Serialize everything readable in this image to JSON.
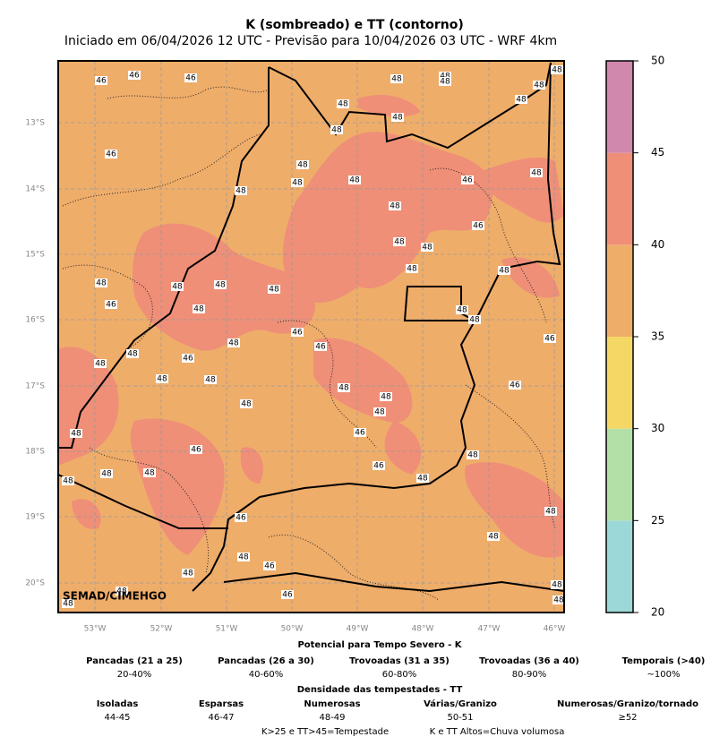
{
  "title": "K (sombreado) e TT (contorno)",
  "subtitle": "Iniciado em 06/04/2026 12 UTC - Previsão para 10/04/2026 03 UTC - WRF 4km",
  "map": {
    "lon_labels": [
      "53°W",
      "52°W",
      "51°W",
      "50°W",
      "49°W",
      "48°W",
      "47°W",
      "46°W"
    ],
    "lat_labels": [
      "13°S",
      "14°S",
      "15°S",
      "16°S",
      "17°S",
      "18°S",
      "19°S",
      "20°S"
    ],
    "watermark": "SEMAD/CIMEHGO",
    "contour_labels": [
      "46",
      "46",
      "46",
      "48",
      "48",
      "48",
      "48",
      "48",
      "48",
      "48",
      "48",
      "48",
      "46",
      "48",
      "48",
      "48",
      "48",
      "48",
      "46",
      "48",
      "46",
      "48",
      "48",
      "48",
      "48",
      "48",
      "48",
      "48",
      "48",
      "46",
      "48",
      "48",
      "48",
      "46",
      "46",
      "46",
      "48",
      "48",
      "46",
      "48",
      "48",
      "48",
      "48",
      "48",
      "46",
      "48",
      "48",
      "48",
      "46",
      "46",
      "48",
      "46",
      "48",
      "48",
      "48",
      "48",
      "46",
      "48",
      "48",
      "48",
      "46",
      "48",
      "48",
      "48",
      "46",
      "48",
      "48"
    ]
  },
  "colorbar": {
    "lim": [
      20,
      50
    ],
    "ticks": [
      20,
      25,
      30,
      35,
      40,
      45,
      50
    ],
    "levels": [
      20,
      25,
      30,
      35,
      40,
      45,
      50
    ],
    "colors": [
      "#9dd8d8",
      "#b3e0a6",
      "#f5d766",
      "#efad6a",
      "#ef8f78",
      "#d088ad"
    ]
  },
  "legend": {
    "k_title": "Potencial para Tempo Severo - K",
    "k_items": [
      {
        "name": "Pancadas (21 a 25)",
        "range": "20-40%"
      },
      {
        "name": "Pancadas (26 a 30)",
        "range": "40-60%"
      },
      {
        "name": "Trovoadas (31 a 35)",
        "range": "60-80%"
      },
      {
        "name": "Trovoadas (36 a 40)",
        "range": "80-90%"
      },
      {
        "name": "Temporais (>40)",
        "range": "~100%"
      }
    ],
    "tt_title": "Densidade das tempestades - TT",
    "tt_items": [
      {
        "name": "Isoladas",
        "range": "44-45"
      },
      {
        "name": "Esparsas",
        "range": "46-47"
      },
      {
        "name": "Numerosas",
        "range": "48-49"
      },
      {
        "name": "Várias/Granizo",
        "range": "50-51"
      },
      {
        "name": "Numerosas/Granizo/tornado",
        "range": "≥52"
      }
    ],
    "notes": [
      "K>25 e TT>45=Tempestade",
      "K e TT Altos=Chuva volumosa"
    ]
  }
}
